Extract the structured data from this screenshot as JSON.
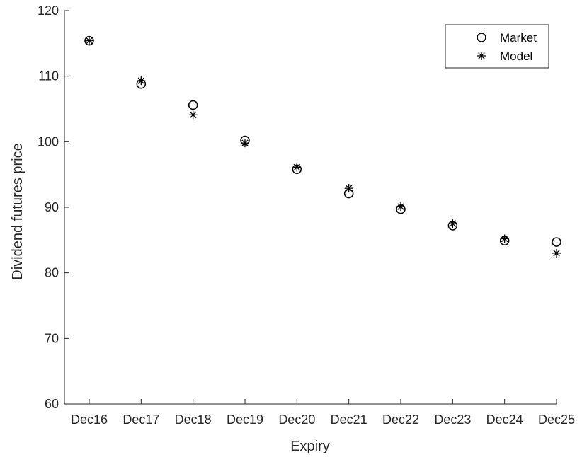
{
  "chart_data": {
    "type": "scatter",
    "title": "",
    "xlabel": "Expiry",
    "ylabel": "Dividend futures price",
    "categories": [
      "Dec16",
      "Dec17",
      "Dec18",
      "Dec19",
      "Dec20",
      "Dec21",
      "Dec22",
      "Dec23",
      "Dec24",
      "Dec25"
    ],
    "ylim": [
      60,
      120
    ],
    "yticks": [
      60,
      70,
      80,
      90,
      100,
      110,
      120
    ],
    "grid": false,
    "legend_position": "top-right",
    "series": [
      {
        "name": "Market",
        "marker": "circle",
        "color": "#000000",
        "values": [
          115.4,
          108.8,
          105.6,
          100.2,
          95.8,
          92.1,
          89.7,
          87.2,
          84.9,
          84.7
        ]
      },
      {
        "name": "Model",
        "marker": "asterisk",
        "color": "#000000",
        "values": [
          115.4,
          109.3,
          104.1,
          99.8,
          96.1,
          92.9,
          90.1,
          87.5,
          85.2,
          83.0
        ]
      }
    ]
  }
}
